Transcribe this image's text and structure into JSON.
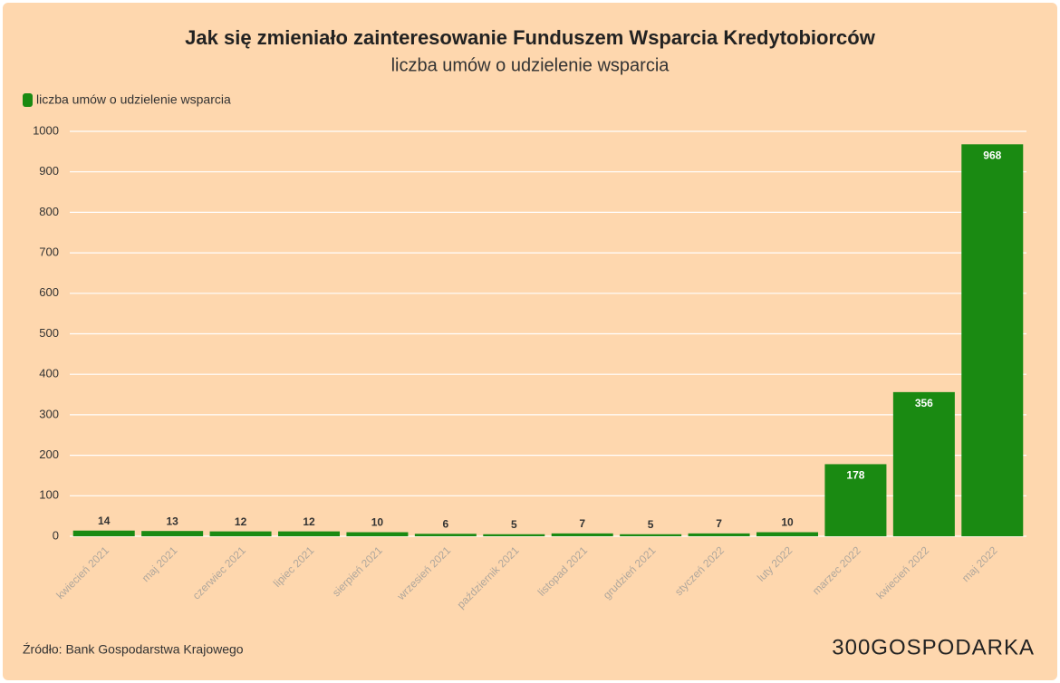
{
  "chart_data": {
    "type": "bar",
    "title": "Jak się zmieniało zainteresowanie Funduszem Wsparcia Kredytobiorców",
    "subtitle": "liczba umów o udzielenie wsparcia",
    "categories": [
      "kwiecień 2021",
      "maj 2021",
      "czerwiec 2021",
      "lipiec 2021",
      "sierpień 2021",
      "wrzesień 2021",
      "październik 2021",
      "listopad 2021",
      "grudzień 2021",
      "styczeń 2022",
      "luty 2022",
      "marzec 2022",
      "kwiecień 2022",
      "maj 2022"
    ],
    "series": [
      {
        "name": "liczba umów o udzielenie wsparcia",
        "color": "#1a8a12",
        "values": [
          14,
          13,
          12,
          12,
          10,
          6,
          5,
          7,
          5,
          7,
          10,
          178,
          356,
          968
        ]
      }
    ],
    "ylim": [
      0,
      1000
    ],
    "yticks": [
      0,
      100,
      200,
      300,
      400,
      500,
      600,
      700,
      800,
      900,
      1000
    ],
    "grid": true,
    "legend": "top-left",
    "source": "Źródło: Bank Gospodarstwa Krajowego",
    "logo": "300GOSPODARKA"
  }
}
